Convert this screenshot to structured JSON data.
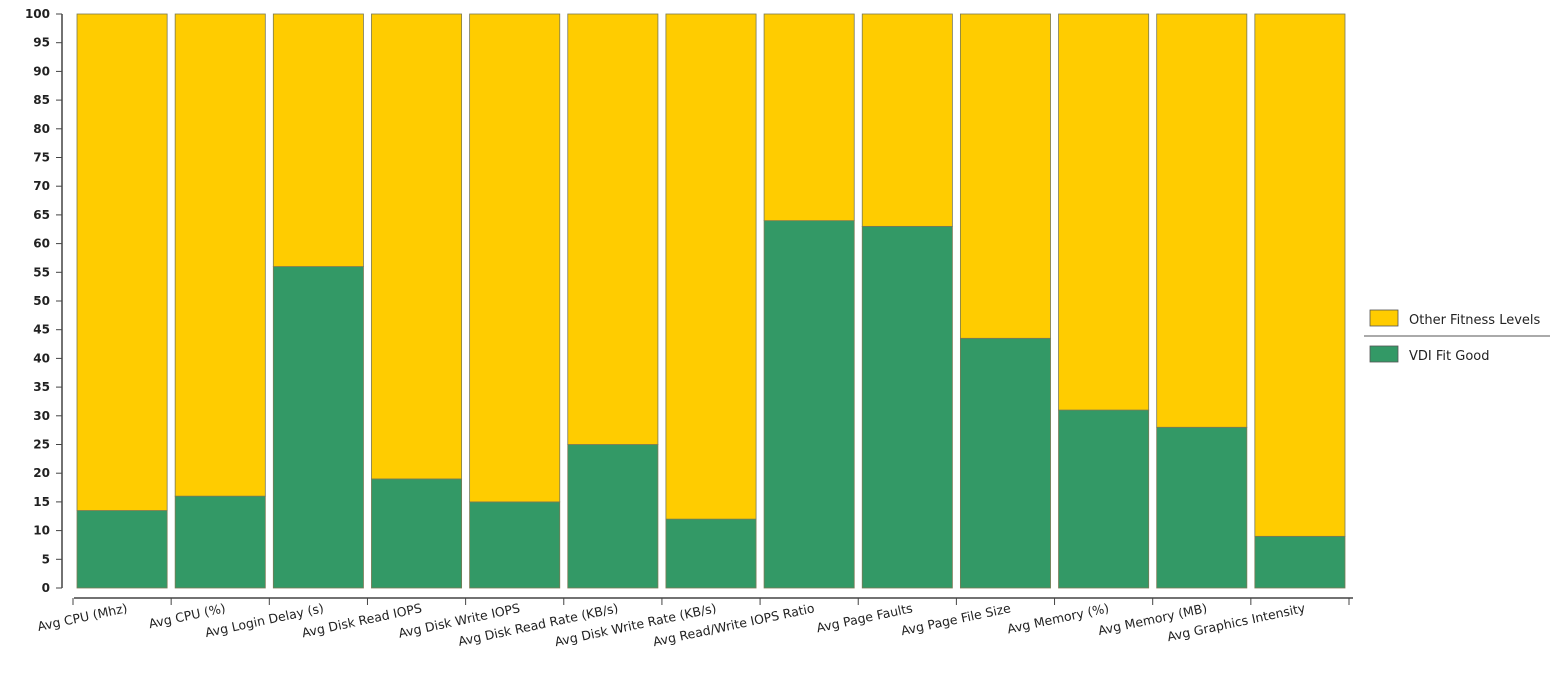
{
  "chart_data": {
    "type": "bar",
    "stacked": true,
    "title": "",
    "xlabel": "",
    "ylabel": "",
    "ylim": [
      0,
      100
    ],
    "ytick_step": 5,
    "grid": false,
    "legend_position": "right",
    "categories": [
      "Avg CPU (Mhz)",
      "Avg CPU (%)",
      "Avg Login Delay (s)",
      "Avg Disk Read IOPS",
      "Avg Disk Write IOPS",
      "Avg Disk Read Rate (KB/s)",
      "Avg Disk Write Rate (KB/s)",
      "Avg Read/Write IOPS Ratio",
      "Avg Page Faults",
      "Avg Page File Size",
      "Avg Memory (%)",
      "Avg Memory (MB)",
      "Avg Graphics Intensity"
    ],
    "series": [
      {
        "name": "VDI Fit Good",
        "color": "#339966",
        "values": [
          13.5,
          16,
          56,
          19,
          15,
          25,
          12,
          64,
          63,
          43.5,
          31,
          28,
          9
        ]
      },
      {
        "name": "Other Fitness Levels",
        "color": "#ffcc00",
        "values": [
          86.5,
          84,
          44,
          81,
          85,
          75,
          88,
          36,
          37,
          56.5,
          69,
          72,
          91
        ]
      }
    ],
    "legend_order": [
      "Other Fitness Levels",
      "VDI Fit Good"
    ]
  }
}
